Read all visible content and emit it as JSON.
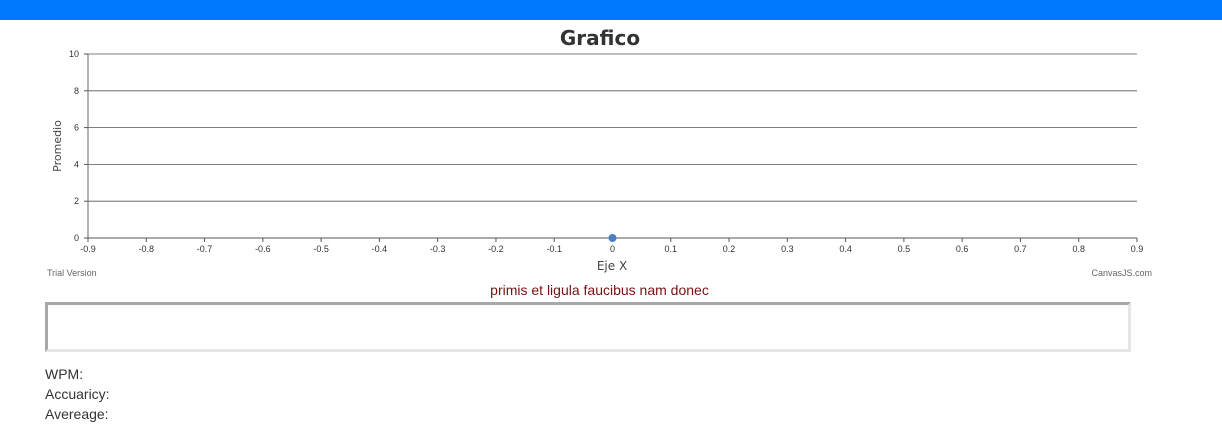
{
  "chart_data": {
    "type": "scatter",
    "title": "Grafico",
    "xlabel": "Eje X",
    "ylabel": "Promedio",
    "xlim": [
      -0.9,
      0.9
    ],
    "ylim": [
      0,
      10
    ],
    "x_ticks": [
      "-0.9",
      "-0.8",
      "-0.7",
      "-0.6",
      "-0.5",
      "-0.4",
      "-0.3",
      "-0.2",
      "-0.1",
      "0",
      "0.1",
      "0.2",
      "0.3",
      "0.4",
      "0.5",
      "0.6",
      "0.7",
      "0.8",
      "0.9"
    ],
    "y_ticks": [
      "0",
      "2",
      "4",
      "6",
      "8",
      "10"
    ],
    "points": [
      {
        "x": 0,
        "y": 0
      }
    ],
    "grid": true,
    "point_color": "#4a7fc1",
    "watermark_left": "Trial Version",
    "watermark_right": "CanvasJS.com"
  },
  "typing": {
    "text": "primis et ligula faucibus nam donec",
    "input_value": ""
  },
  "stats": {
    "wpm_label": "WPM:",
    "accuracy_label": "Accuaricy:",
    "average_label": "Avereage:"
  },
  "colors": {
    "topbar": "#0078ff",
    "prompt_text": "#7a1010"
  }
}
